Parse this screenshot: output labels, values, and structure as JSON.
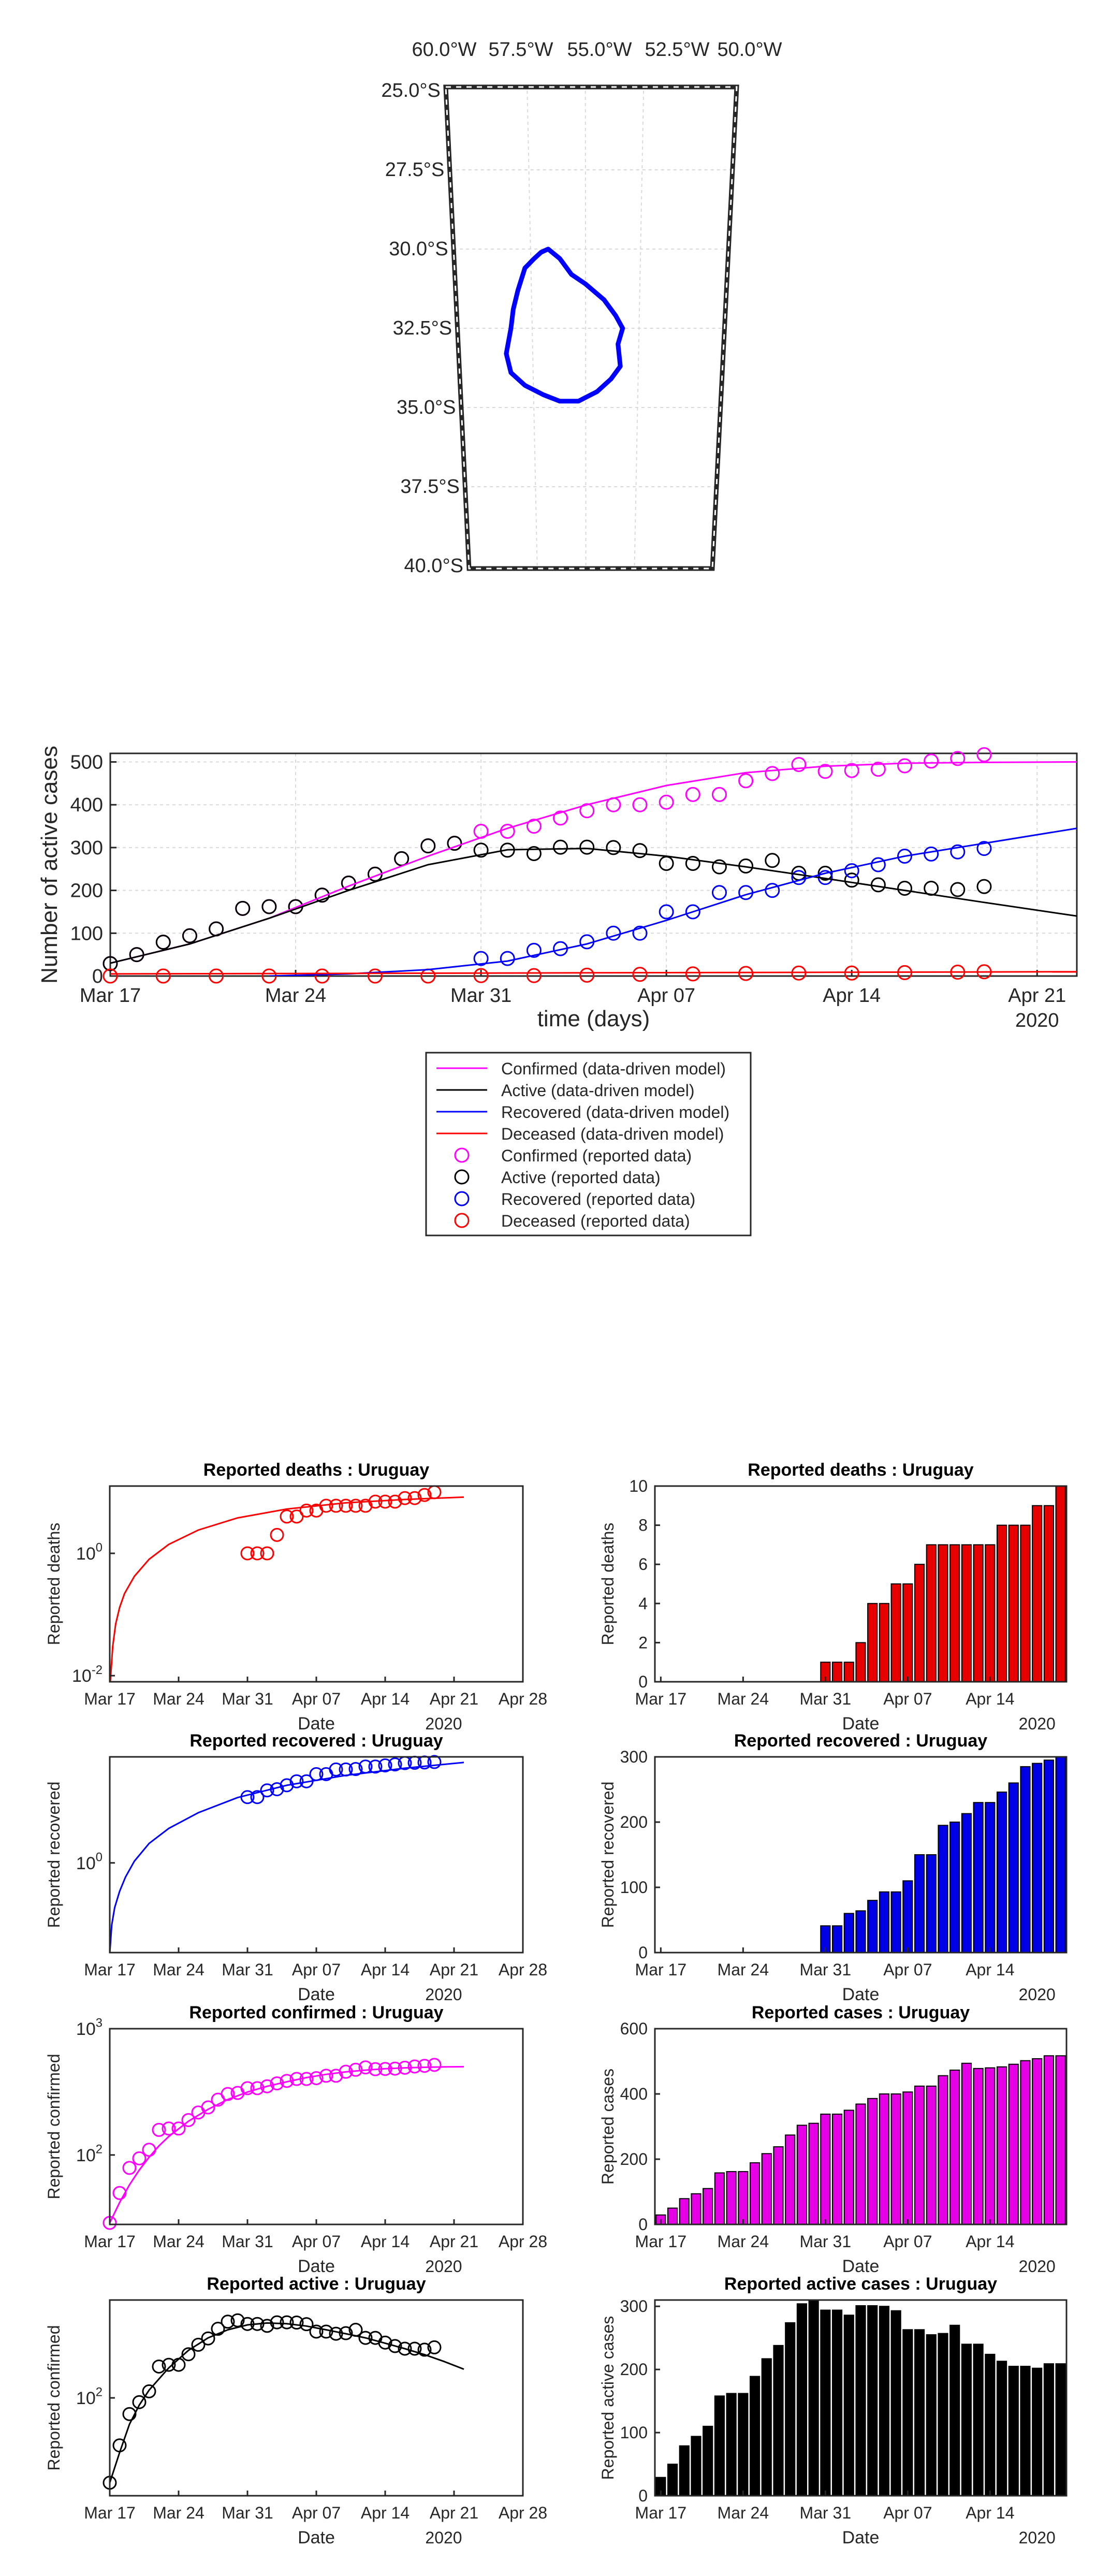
{
  "map": {
    "lon_labels": [
      "60.0°W",
      "57.5°W",
      "55.0°W",
      "52.5°W",
      "50.0°W"
    ],
    "lon_values": [
      -60,
      -57.5,
      -55,
      -52.5,
      -50
    ],
    "lat_labels": [
      "25.0°S",
      "27.5°S",
      "30.0°S",
      "32.5°S",
      "35.0°S",
      "37.5°S",
      "40.0°S"
    ],
    "lat_values": [
      -25,
      -27.5,
      -30,
      -32.5,
      -35,
      -37.5,
      -40
    ],
    "outline_color": "#0000ff",
    "outline": [
      [
        -56.9,
        -30.1
      ],
      [
        -56.6,
        -30.0
      ],
      [
        -56.1,
        -30.3
      ],
      [
        -55.6,
        -30.8
      ],
      [
        -55.0,
        -31.1
      ],
      [
        -54.2,
        -31.6
      ],
      [
        -53.7,
        -32.1
      ],
      [
        -53.4,
        -32.5
      ],
      [
        -53.6,
        -33.0
      ],
      [
        -53.5,
        -33.7
      ],
      [
        -53.9,
        -34.1
      ],
      [
        -54.5,
        -34.5
      ],
      [
        -55.3,
        -34.8
      ],
      [
        -56.1,
        -34.8
      ],
      [
        -56.8,
        -34.6
      ],
      [
        -57.6,
        -34.3
      ],
      [
        -58.2,
        -33.9
      ],
      [
        -58.4,
        -33.3
      ],
      [
        -58.2,
        -32.5
      ],
      [
        -58.1,
        -31.9
      ],
      [
        -57.9,
        -31.3
      ],
      [
        -57.6,
        -30.6
      ],
      [
        -57.2,
        -30.3
      ],
      [
        -56.9,
        -30.1
      ]
    ]
  },
  "chart_data": [
    {
      "type": "line",
      "title": "",
      "xlabel": "time (days)",
      "ylabel": "Number of active cases",
      "x_tick_labels": [
        "Mar 17",
        "Mar 24",
        "Mar 31",
        "Apr 07",
        "Apr 14",
        "Apr 21"
      ],
      "x_tick_days": [
        0,
        7,
        14,
        21,
        28,
        35
      ],
      "year_label": "2020",
      "xlim": [
        0,
        36.5
      ],
      "ylim": [
        0,
        520
      ],
      "y_ticks": [
        0,
        100,
        200,
        300,
        400,
        500
      ],
      "grid": true,
      "legend_position": "below",
      "legend": [
        "Confirmed (data-driven model)",
        "Active (data-driven model)",
        "Recovered (data-driven model)",
        "Deceased (data-driven model)",
        "Confirmed (reported data)",
        "Active (reported data)",
        "Recovered (reported data)",
        "Deceased  (reported data)"
      ],
      "colors": {
        "confirmed": "#ff00ff",
        "active": "#000000",
        "recovered": "#0000ff",
        "deceased": "#ff0000"
      },
      "series": [
        {
          "name": "Confirmed (reported data)",
          "color": "#ff00ff",
          "x": [
            0,
            1,
            2,
            3,
            4,
            5,
            6,
            7,
            8,
            9,
            10,
            11,
            12,
            13,
            14,
            15,
            16,
            17,
            18,
            19,
            20,
            21,
            22,
            23,
            24,
            25,
            26,
            27,
            28,
            29,
            30,
            31,
            32,
            33
          ],
          "values": [
            29,
            50,
            79,
            94,
            110,
            158,
            162,
            162,
            189,
            217,
            238,
            274,
            304,
            310,
            338,
            338,
            350,
            369,
            386,
            400,
            400,
            406,
            424,
            424,
            456,
            473,
            494,
            478,
            480,
            483,
            491,
            502,
            508,
            517
          ]
        },
        {
          "name": "Active (reported data)",
          "color": "#000000",
          "x": [
            0,
            1,
            2,
            3,
            4,
            5,
            6,
            7,
            8,
            9,
            10,
            11,
            12,
            13,
            14,
            15,
            16,
            17,
            18,
            19,
            20,
            21,
            22,
            23,
            24,
            25,
            26,
            27,
            28,
            29,
            30,
            31,
            32,
            33
          ],
          "values": [
            29,
            50,
            79,
            94,
            110,
            158,
            162,
            162,
            189,
            217,
            238,
            274,
            304,
            310,
            294,
            294,
            286,
            301,
            301,
            300,
            293,
            263,
            263,
            255,
            257,
            270,
            240,
            240,
            224,
            213,
            205,
            205,
            202,
            209
          ]
        },
        {
          "name": "Recovered (reported data)",
          "color": "#0000ff",
          "x": [
            14,
            15,
            16,
            17,
            18,
            19,
            20,
            21,
            22,
            23,
            24,
            25,
            26,
            27,
            28,
            29,
            30,
            31,
            32,
            33
          ],
          "values": [
            41,
            41,
            60,
            64,
            80,
            100,
            100,
            150,
            150,
            195,
            195,
            200,
            230,
            230,
            246,
            260,
            280,
            285,
            290,
            298
          ]
        },
        {
          "name": "Deceased  (reported data)",
          "color": "#ff0000",
          "x": [
            0,
            2,
            4,
            6,
            8,
            10,
            12,
            14,
            16,
            18,
            20,
            22,
            24,
            26,
            28,
            30,
            32,
            33
          ],
          "values": [
            0,
            0,
            0,
            0,
            0,
            0,
            0,
            1,
            1,
            2,
            4,
            5,
            6,
            7,
            7,
            8,
            9,
            10
          ]
        },
        {
          "name": "Confirmed (data-driven model)",
          "color": "#ff00ff",
          "x": [
            0,
            3,
            6,
            9,
            12,
            15,
            18,
            21,
            24,
            27,
            30,
            33,
            36.5
          ],
          "values": [
            30,
            75,
            135,
            210,
            280,
            345,
            400,
            445,
            475,
            490,
            497,
            499,
            500
          ]
        },
        {
          "name": "Active (data-driven model)",
          "color": "#000000",
          "x": [
            0,
            3,
            6,
            9,
            12,
            15,
            18,
            21,
            24,
            27,
            30,
            33,
            36.5
          ],
          "values": [
            30,
            75,
            135,
            200,
            260,
            295,
            298,
            280,
            255,
            228,
            200,
            172,
            140
          ]
        },
        {
          "name": "Recovered (data-driven model)",
          "color": "#0000ff",
          "x": [
            6,
            9,
            12,
            15,
            18,
            21,
            24,
            27,
            30,
            33,
            36.5
          ],
          "values": [
            0,
            5,
            15,
            35,
            75,
            130,
            190,
            240,
            280,
            310,
            345
          ]
        },
        {
          "name": "Deceased (data-driven model)",
          "color": "#ff0000",
          "x": [
            0,
            36.5
          ],
          "values": [
            5,
            10
          ]
        }
      ]
    },
    {
      "type": "scatter",
      "title": "Reported deaths : Uruguay",
      "xlabel": "Date",
      "ylabel": "Reported deaths",
      "yscale": "log",
      "y_tick_labels": [
        "10",
        "10"
      ],
      "y_tick_exps": [
        "-2",
        "0"
      ],
      "x_tick_labels": [
        "Mar 17",
        "Mar 24",
        "Mar 31",
        "Apr 07",
        "Apr 14",
        "Apr 21",
        "Apr 28"
      ],
      "year_label": "2020",
      "xlim": [
        0,
        42
      ],
      "log_ylim": [
        -2.1,
        1.1
      ],
      "color": "#ff0000",
      "marker": "circle",
      "fit_label": "model",
      "x": [
        14,
        15,
        16,
        17,
        18,
        19,
        20,
        21,
        22,
        23,
        24,
        25,
        26,
        27,
        28,
        29,
        30,
        31,
        32,
        33
      ],
      "values": [
        1,
        1,
        1,
        2,
        4,
        4,
        5,
        5,
        6,
        6,
        6,
        6,
        6,
        7,
        7,
        7,
        8,
        8,
        9,
        10
      ],
      "fit_x": [
        0,
        0.3,
        0.6,
        1,
        1.5,
        2.5,
        4,
        6,
        9,
        13,
        18,
        24,
        30,
        36
      ],
      "fit_values": [
        0.006,
        0.03,
        0.07,
        0.13,
        0.22,
        0.42,
        0.8,
        1.4,
        2.4,
        3.8,
        5.3,
        6.7,
        7.6,
        8.3
      ]
    },
    {
      "type": "bar",
      "title": "Reported deaths : Uruguay",
      "xlabel": "Date",
      "ylabel": "Reported deaths",
      "x_tick_labels": [
        "Mar 17",
        "Mar 24",
        "Mar 31",
        "Apr 07",
        "Apr 14"
      ],
      "year_label": "2020",
      "xlim": [
        -0.5,
        34.5
      ],
      "ylim": [
        0,
        10
      ],
      "y_ticks": [
        0,
        2,
        4,
        6,
        8,
        10
      ],
      "color": "#e60000",
      "values": [
        0,
        0,
        0,
        0,
        0,
        0,
        0,
        0,
        0,
        0,
        0,
        0,
        0,
        0,
        1,
        1,
        1,
        2,
        4,
        4,
        5,
        5,
        6,
        7,
        7,
        7,
        7,
        7,
        7,
        8,
        8,
        8,
        9,
        9,
        10
      ]
    },
    {
      "type": "scatter",
      "title": "Reported recovered : Uruguay",
      "xlabel": "Date",
      "ylabel": "Reported recovered",
      "yscale": "log",
      "y_tick_labels": [
        "10"
      ],
      "y_tick_exps": [
        "0"
      ],
      "x_tick_labels": [
        "Mar 17",
        "Mar 24",
        "Mar 31",
        "Apr 07",
        "Apr 14",
        "Apr 21",
        "Apr 28"
      ],
      "year_label": "2020",
      "xlim": [
        0,
        42
      ],
      "log_ylim": [
        -2.2,
        2.6
      ],
      "color": "#0000ff",
      "marker": "circle",
      "fit_label": "model",
      "x": [
        14,
        15,
        16,
        17,
        18,
        19,
        20,
        21,
        22,
        23,
        24,
        25,
        26,
        27,
        28,
        29,
        30,
        31,
        32,
        33
      ],
      "values": [
        41,
        41,
        60,
        64,
        80,
        100,
        100,
        150,
        150,
        195,
        195,
        200,
        230,
        230,
        246,
        260,
        280,
        285,
        290,
        298
      ],
      "fit_x": [
        0,
        0.2,
        0.5,
        1,
        1.6,
        2.5,
        4,
        6,
        9,
        13,
        18,
        24,
        30,
        36
      ],
      "fit_values": [
        0.006,
        0.03,
        0.08,
        0.2,
        0.45,
        1.1,
        3,
        7,
        17,
        40,
        80,
        140,
        210,
        290
      ]
    },
    {
      "type": "bar",
      "title": "Reported recovered : Uruguay",
      "xlabel": "Date",
      "ylabel": "Reported recovered",
      "x_tick_labels": [
        "Mar 17",
        "Mar 24",
        "Mar 31",
        "Apr 07",
        "Apr 14"
      ],
      "year_label": "2020",
      "xlim": [
        -0.5,
        34.5
      ],
      "ylim": [
        0,
        300
      ],
      "y_ticks": [
        0,
        100,
        200,
        300
      ],
      "color": "#0000e6",
      "values": [
        0,
        0,
        0,
        0,
        0,
        0,
        0,
        0,
        0,
        0,
        0,
        0,
        0,
        0,
        41,
        41,
        60,
        64,
        80,
        93,
        93,
        110,
        150,
        150,
        195,
        200,
        213,
        230,
        230,
        246,
        260,
        285,
        290,
        295,
        300
      ]
    },
    {
      "type": "scatter",
      "title": "Reported confirmed : Uruguay",
      "xlabel": "Date",
      "ylabel": "Reported confirmed",
      "yscale": "log",
      "y_tick_labels": [
        "10",
        "10"
      ],
      "y_tick_exps": [
        "2",
        "3"
      ],
      "x_tick_labels": [
        "Mar 17",
        "Mar 24",
        "Mar 31",
        "Apr 07",
        "Apr 14",
        "Apr 21",
        "Apr 28"
      ],
      "year_label": "2020",
      "xlim": [
        0,
        42
      ],
      "log_ylim": [
        1.45,
        3.0
      ],
      "color": "#ff00ff",
      "marker": "circle",
      "fit_label": "model",
      "x": [
        0,
        1,
        2,
        3,
        4,
        5,
        6,
        7,
        8,
        9,
        10,
        11,
        12,
        13,
        14,
        15,
        16,
        17,
        18,
        19,
        20,
        21,
        22,
        23,
        24,
        25,
        26,
        27,
        28,
        29,
        30,
        31,
        32,
        33
      ],
      "values": [
        29,
        50,
        79,
        94,
        110,
        158,
        162,
        162,
        189,
        217,
        238,
        274,
        304,
        310,
        338,
        338,
        350,
        369,
        386,
        400,
        400,
        406,
        424,
        424,
        456,
        473,
        494,
        478,
        480,
        483,
        491,
        502,
        508,
        517
      ],
      "fit_x": [
        0,
        1,
        2,
        3,
        4,
        5,
        6,
        8,
        10,
        12,
        14,
        16,
        18,
        20,
        22,
        24,
        26,
        28,
        30,
        32,
        34,
        36
      ],
      "fit_values": [
        29,
        42,
        58,
        76,
        96,
        118,
        140,
        185,
        230,
        275,
        315,
        350,
        380,
        410,
        435,
        455,
        470,
        482,
        490,
        495,
        498,
        500
      ]
    },
    {
      "type": "bar",
      "title": "Reported cases : Uruguay",
      "xlabel": "Date",
      "ylabel": "Reported cases",
      "x_tick_labels": [
        "Mar 17",
        "Mar 24",
        "Mar 31",
        "Apr 07",
        "Apr 14"
      ],
      "year_label": "2020",
      "xlim": [
        -0.5,
        34.5
      ],
      "ylim": [
        0,
        600
      ],
      "y_ticks": [
        0,
        200,
        400,
        600
      ],
      "color": "#e600e6",
      "values": [
        29,
        50,
        79,
        94,
        110,
        158,
        162,
        162,
        189,
        217,
        238,
        274,
        304,
        310,
        338,
        338,
        350,
        369,
        386,
        400,
        400,
        406,
        424,
        424,
        456,
        473,
        494,
        478,
        480,
        483,
        491,
        502,
        508,
        517,
        517
      ]
    },
    {
      "type": "scatter",
      "title": "Reported active : Uruguay",
      "xlabel": "Date",
      "ylabel": "Reported confirmed",
      "yscale": "log",
      "y_tick_labels": [
        "10"
      ],
      "y_tick_exps": [
        "2"
      ],
      "x_tick_labels": [
        "Mar 17",
        "Mar 24",
        "Mar 31",
        "Apr 07",
        "Apr 14",
        "Apr 21",
        "Apr 28"
      ],
      "year_label": "2020",
      "xlim": [
        0,
        42
      ],
      "log_ylim": [
        1.38,
        2.62
      ],
      "color": "#000000",
      "marker": "circle",
      "fit_label": "model",
      "x": [
        0,
        1,
        2,
        3,
        4,
        5,
        6,
        7,
        8,
        9,
        10,
        11,
        12,
        13,
        14,
        15,
        16,
        17,
        18,
        19,
        20,
        21,
        22,
        23,
        24,
        25,
        26,
        27,
        28,
        29,
        30,
        31,
        32,
        33
      ],
      "values": [
        29,
        50,
        79,
        94,
        110,
        158,
        162,
        162,
        189,
        217,
        238,
        274,
        304,
        310,
        294,
        294,
        286,
        301,
        301,
        300,
        293,
        263,
        263,
        255,
        257,
        270,
        240,
        240,
        224,
        213,
        205,
        205,
        202,
        209
      ],
      "fit_x": [
        0,
        1,
        2,
        3,
        4,
        6,
        8,
        10,
        12,
        14,
        16,
        18,
        20,
        22,
        24,
        26,
        28,
        30,
        32,
        34,
        36
      ],
      "fit_values": [
        29,
        45,
        68,
        90,
        112,
        155,
        200,
        240,
        270,
        290,
        298,
        295,
        285,
        270,
        255,
        240,
        222,
        205,
        188,
        170,
        152
      ]
    },
    {
      "type": "bar",
      "title": "Reported active cases : Uruguay",
      "xlabel": "Date",
      "ylabel": "Reported active cases",
      "x_tick_labels": [
        "Mar 17",
        "Mar 24",
        "Mar 31",
        "Apr 07",
        "Apr 14"
      ],
      "year_label": "2020",
      "xlim": [
        -0.5,
        34.5
      ],
      "ylim": [
        0,
        310
      ],
      "y_ticks": [
        0,
        100,
        200,
        300
      ],
      "color": "#000000",
      "values": [
        29,
        50,
        79,
        94,
        110,
        158,
        162,
        162,
        189,
        217,
        238,
        274,
        304,
        310,
        294,
        294,
        286,
        301,
        301,
        300,
        293,
        263,
        263,
        255,
        257,
        270,
        240,
        240,
        224,
        213,
        205,
        205,
        202,
        209,
        209
      ]
    }
  ]
}
